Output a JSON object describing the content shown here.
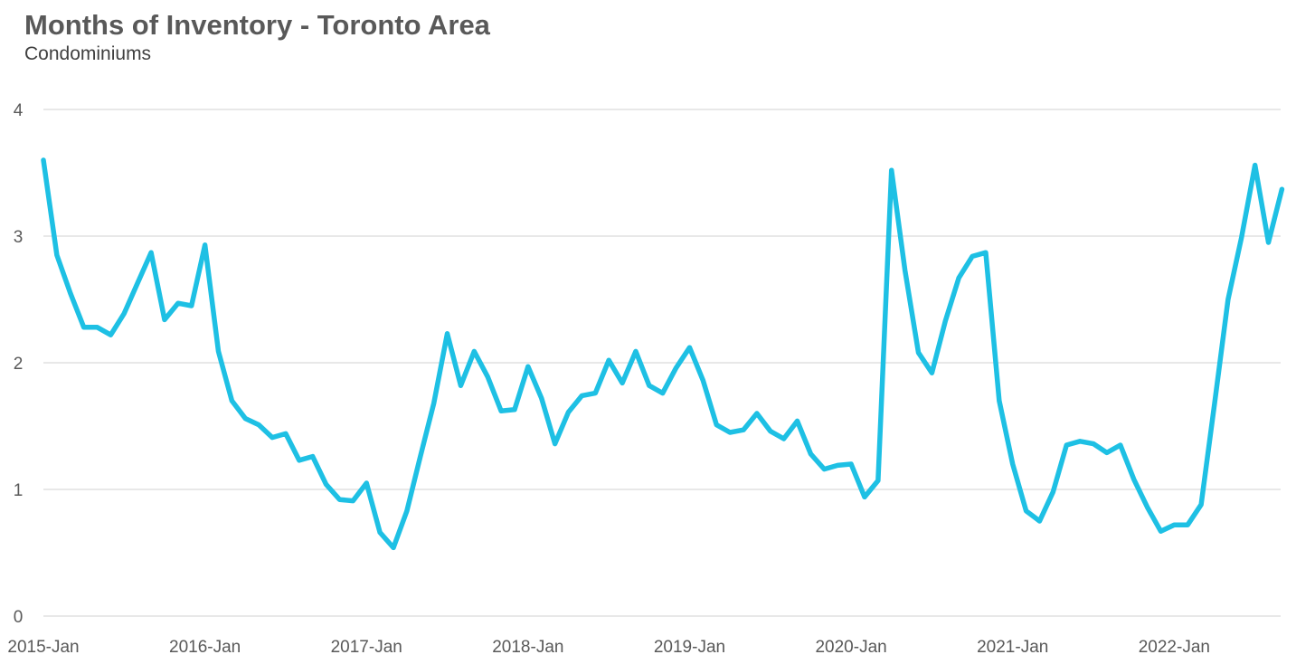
{
  "chart_data": {
    "type": "line",
    "title": "Months of Inventory - Toronto Area",
    "subtitle": "Condominiums",
    "xlabel": "",
    "ylabel": "",
    "ylim": [
      0,
      4
    ],
    "yticks": [
      0,
      1,
      2,
      3,
      4
    ],
    "xtick_labels": [
      "2015-Jan",
      "2016-Jan",
      "2017-Jan",
      "2018-Jan",
      "2019-Jan",
      "2020-Jan",
      "2021-Jan",
      "2022-Jan"
    ],
    "x_start": "2015-01",
    "x_end": "2022-08",
    "grid": true,
    "legend": "none",
    "line_color": "#1ec0e4",
    "series": [
      {
        "values": [
          3.6,
          2.85,
          2.55,
          2.28,
          2.28,
          2.22,
          2.39,
          2.63,
          2.87,
          2.34,
          2.47,
          2.45,
          2.93,
          2.09,
          1.7,
          1.56,
          1.51,
          1.41,
          1.44,
          1.23,
          1.26,
          1.04,
          0.92,
          0.91,
          1.05,
          0.66,
          0.54,
          0.83,
          1.26,
          1.68,
          2.23,
          1.82,
          2.09,
          1.89,
          1.62,
          1.63,
          1.97,
          1.72,
          1.36,
          1.61,
          1.74,
          1.76,
          2.02,
          1.84,
          2.09,
          1.82,
          1.76,
          1.96,
          2.12,
          1.86,
          1.51,
          1.45,
          1.47,
          1.6,
          1.46,
          1.4,
          1.54,
          1.28,
          1.16,
          1.19,
          1.2,
          0.94,
          1.07,
          3.52,
          2.73,
          2.08,
          1.92,
          2.33,
          2.67,
          2.84,
          2.87,
          1.7,
          1.2,
          0.83,
          0.75,
          0.98,
          1.35,
          1.38,
          1.36,
          1.29,
          1.35,
          1.08,
          0.86,
          0.67,
          0.72,
          0.72,
          0.88,
          1.68,
          2.5,
          2.99,
          3.56,
          2.95,
          3.37
        ]
      }
    ]
  }
}
